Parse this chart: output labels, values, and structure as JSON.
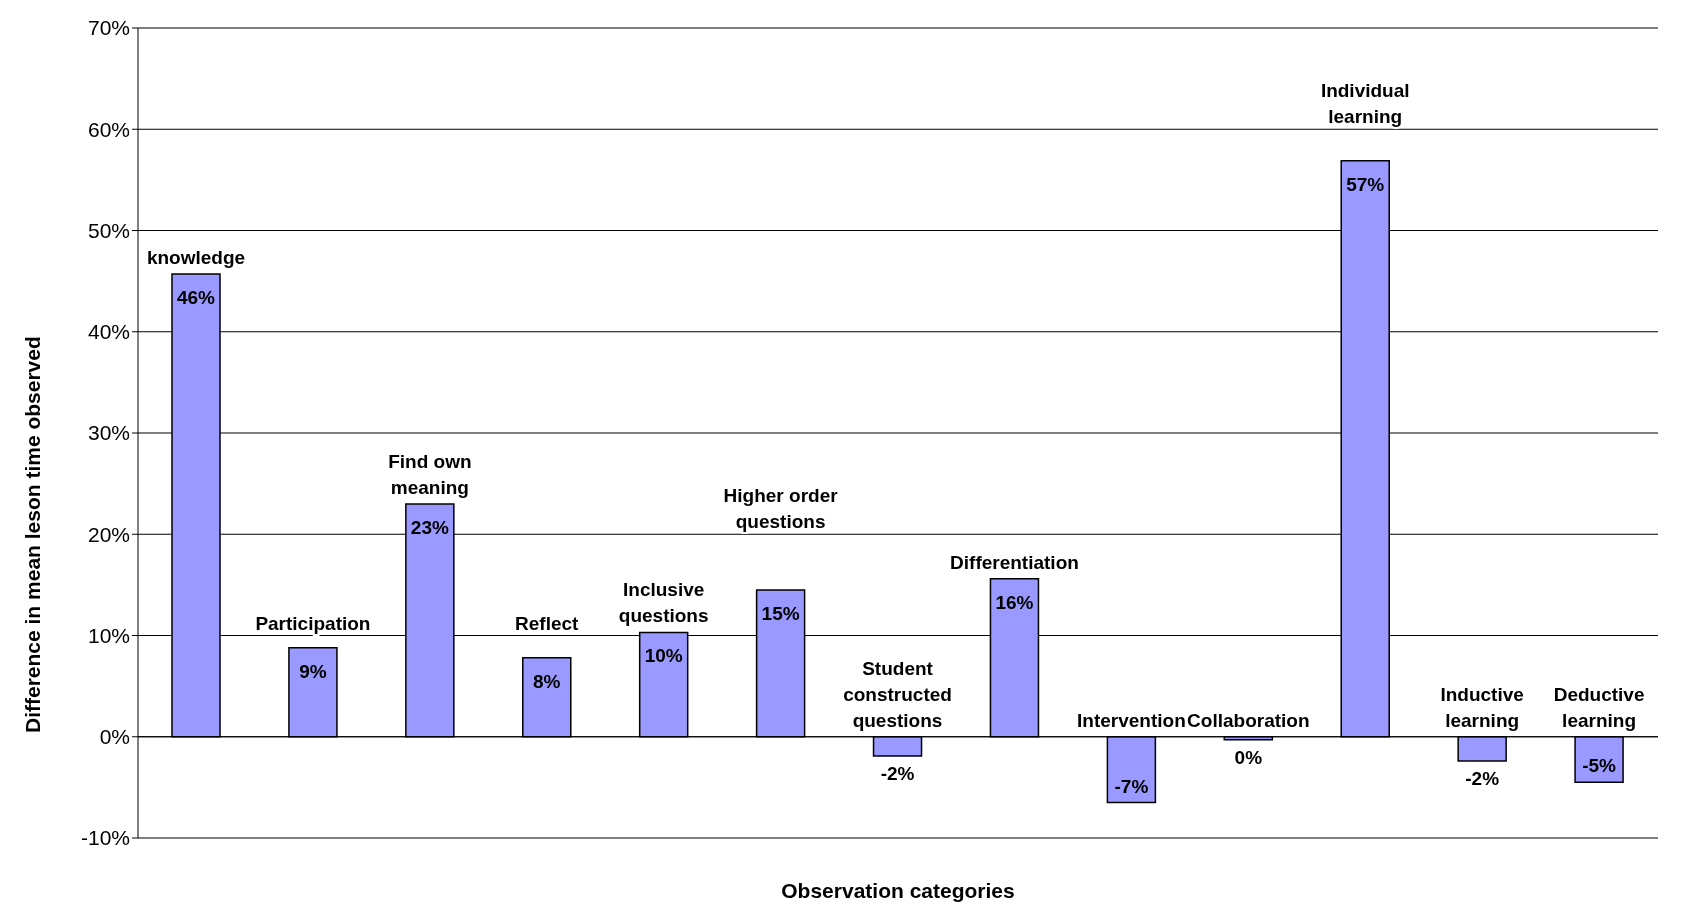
{
  "chart_data": {
    "type": "bar",
    "xlabel": "Observation categories",
    "ylabel": "Difference in mean leson time observed",
    "categories": [
      "knowledge",
      "Participation",
      "Find own meaning",
      "Reflect",
      "Inclusive questions",
      "Higher order questions",
      "Student constructed questions",
      "Differentiation",
      "Intervention",
      "Collaboration",
      "Individual learning",
      "Inductive learning",
      "Deductive learning"
    ],
    "values": [
      45.7,
      8.8,
      23,
      7.8,
      10.3,
      14.5,
      -1.9,
      15.6,
      -6.5,
      -0.3,
      56.9,
      -2.4,
      -4.5
    ],
    "value_labels": [
      "46%",
      "9%",
      "23%",
      "8%",
      "10%",
      "15%",
      "-2%",
      "16%",
      "-7%",
      "0%",
      "57%",
      "-2%",
      "-5%"
    ],
    "color": "#9999ff",
    "ylim": [
      -10,
      70
    ],
    "yticks": [
      {
        "value": -10,
        "label": "-10%"
      },
      {
        "value": 0,
        "label": "0%"
      },
      {
        "value": 10,
        "label": "10%"
      },
      {
        "value": 20,
        "label": "20%"
      },
      {
        "value": 30,
        "label": "30%"
      },
      {
        "value": 40,
        "label": "40%"
      },
      {
        "value": 50,
        "label": "50%"
      },
      {
        "value": 60,
        "label": "60%"
      },
      {
        "value": 70,
        "label": "70%"
      }
    ],
    "grid": "y",
    "tick_labels": "y",
    "legend": false
  }
}
